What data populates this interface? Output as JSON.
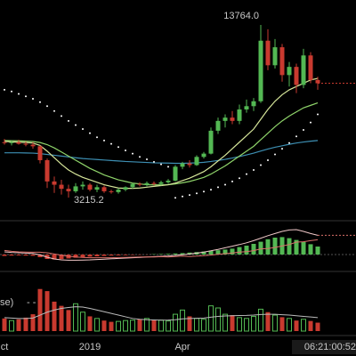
{
  "chart_data": [
    {
      "type": "candlestick",
      "categories": [
        "ct",
        null,
        null,
        null,
        null,
        null,
        null,
        null,
        null,
        null,
        null,
        null,
        "2019",
        null,
        null,
        null,
        null,
        null,
        null,
        null,
        null,
        null,
        null,
        null,
        null,
        "Apr",
        null,
        null,
        null,
        null,
        null,
        null,
        null,
        null,
        null,
        null,
        null,
        null,
        null,
        null,
        null,
        null,
        null,
        null,
        null
      ],
      "open": [
        6600,
        6550,
        6600,
        6500,
        6450,
        6350,
        5500,
        4200,
        4000,
        3750,
        3600,
        3900,
        4000,
        3700,
        3850,
        3600,
        3550,
        3700,
        3850,
        4050,
        4000,
        4100,
        4050,
        4150,
        4250,
        5100,
        5300,
        5200,
        5700,
        5900,
        7300,
        7900,
        8100,
        7900,
        8600,
        8800,
        9100,
        12800,
        11300,
        12400,
        10700,
        11200,
        10100,
        11900,
        10400
      ],
      "high": [
        6800,
        6700,
        6750,
        6650,
        6600,
        6400,
        5600,
        4500,
        4300,
        4000,
        4100,
        4200,
        4100,
        4000,
        3950,
        3700,
        3800,
        3900,
        4100,
        4150,
        4200,
        4200,
        4250,
        4350,
        5200,
        5400,
        5500,
        5800,
        6000,
        7500,
        8100,
        8300,
        8500,
        8900,
        9200,
        9300,
        13764,
        13500,
        12900,
        12600,
        11500,
        11400,
        12300,
        12100,
        10600
      ],
      "low": [
        6450,
        6400,
        6450,
        6350,
        6200,
        5300,
        3800,
        3500,
        3400,
        3215.2,
        3500,
        3700,
        3600,
        3550,
        3500,
        3450,
        3450,
        3600,
        3750,
        3900,
        3900,
        3950,
        3950,
        4050,
        4200,
        4950,
        5050,
        5150,
        5600,
        5850,
        7100,
        7500,
        7700,
        7700,
        8400,
        8500,
        9000,
        11000,
        11100,
        10300,
        10000,
        9600,
        9900,
        10200,
        9800
      ],
      "close": [
        6550,
        6600,
        6500,
        6450,
        6350,
        5500,
        4200,
        4000,
        3750,
        3600,
        3900,
        4000,
        3700,
        3850,
        3600,
        3550,
        3700,
        3850,
        4050,
        4000,
        4100,
        4050,
        4150,
        4250,
        5100,
        5300,
        5200,
        5700,
        5900,
        7300,
        7900,
        8100,
        7900,
        8600,
        8800,
        9100,
        12800,
        11300,
        12400,
        10700,
        11200,
        10100,
        11900,
        10400,
        10200
      ],
      "up_color": "#53b853",
      "down_color": "#c93a2f",
      "lines": [
        {
          "color": "#3d8fb3",
          "values": [
            5950,
            5950,
            5950,
            5940,
            5930,
            5900,
            5850,
            5800,
            5750,
            5700,
            5650,
            5600,
            5570,
            5540,
            5510,
            5480,
            5450,
            5420,
            5400,
            5380,
            5360,
            5340,
            5330,
            5320,
            5310,
            5310,
            5320,
            5340,
            5370,
            5420,
            5480,
            5550,
            5630,
            5720,
            5820,
            5930,
            6060,
            6180,
            6290,
            6380,
            6470,
            6550,
            6610,
            6660,
            6700
          ]
        },
        {
          "color": "#8fd46a",
          "values": [
            6700,
            6690,
            6680,
            6660,
            6640,
            6580,
            6450,
            6250,
            6000,
            5750,
            5500,
            5250,
            5000,
            4800,
            4600,
            4450,
            4300,
            4200,
            4100,
            4050,
            4000,
            3990,
            3990,
            4000,
            4050,
            4120,
            4200,
            4320,
            4450,
            4650,
            4900,
            5150,
            5450,
            5750,
            6050,
            6350,
            6750,
            7150,
            7550,
            7900,
            8200,
            8450,
            8700,
            8850,
            9000
          ]
        },
        {
          "color": "#d6e69a",
          "values": [
            6650,
            6620,
            6600,
            6580,
            6550,
            6400,
            6050,
            5650,
            5250,
            4900,
            4650,
            4450,
            4300,
            4150,
            4000,
            3900,
            3800,
            3780,
            3780,
            3800,
            3850,
            3900,
            3950,
            4000,
            4100,
            4250,
            4400,
            4600,
            4800,
            5100,
            5450,
            5800,
            6200,
            6600,
            7000,
            7400,
            8000,
            8600,
            9100,
            9500,
            9800,
            10000,
            10200,
            10400,
            10500
          ]
        }
      ],
      "sar": {
        "color": "#ffffff",
        "values": [
          9800,
          9700,
          9550,
          9400,
          9250,
          9050,
          8800,
          8500,
          8200,
          7900,
          7650,
          7400,
          7150,
          6900,
          6700,
          6500,
          6300,
          6100,
          5900,
          5700,
          5550,
          5400,
          5250,
          5100,
          3200,
          3280,
          3370,
          3470,
          3580,
          3700,
          3850,
          4000,
          4200,
          4400,
          4650,
          4900,
          5200,
          5500,
          5850,
          6200,
          6550,
          6950,
          7350,
          7800,
          8300
        ]
      },
      "annotations": [
        {
          "value": 13764,
          "label": "13764.0"
        },
        {
          "value": 3215.2,
          "label": "3215.2"
        }
      ],
      "countdown": "06:21:00:52",
      "ylim": [
        1964,
        15287
      ]
    },
    {
      "type": "macd",
      "histogram": [
        -80,
        -60,
        -50,
        -60,
        -70,
        -150,
        -250,
        -280,
        -260,
        -220,
        -180,
        -150,
        -120,
        -100,
        -80,
        -60,
        -50,
        -40,
        -30,
        -20,
        -10,
        20,
        30,
        40,
        60,
        80,
        110,
        140,
        170,
        200,
        240,
        280,
        330,
        420,
        500,
        600,
        720,
        860,
        950,
        980,
        920,
        820,
        700,
        580,
        450
      ],
      "pos_color": "#53b853",
      "neg_color": "#c93a2f",
      "lines": [
        {
          "color": "#f0c8c8",
          "values": [
            150,
            120,
            100,
            80,
            60,
            -20,
            -150,
            -250,
            -300,
            -320,
            -320,
            -310,
            -300,
            -280,
            -260,
            -240,
            -220,
            -200,
            -180,
            -160,
            -140,
            -120,
            -100,
            -80,
            -50,
            -10,
            30,
            80,
            140,
            210,
            290,
            380,
            470,
            560,
            660,
            780,
            920,
            1060,
            1180,
            1300,
            1380,
            1400,
            1300,
            1180,
            1080
          ]
        },
        {
          "color": "#d9706a",
          "values": [
            230,
            180,
            150,
            140,
            130,
            130,
            100,
            30,
            -40,
            -100,
            -140,
            -160,
            -180,
            -180,
            -180,
            -180,
            -170,
            -160,
            -150,
            -140,
            -130,
            -140,
            -120,
            -140,
            -110,
            -90,
            -110,
            -90,
            -60,
            -30,
            10,
            50,
            90,
            140,
            160,
            220,
            320,
            340,
            400,
            480,
            560,
            700,
            720,
            780,
            830
          ]
        }
      ],
      "ylim": [
        -700,
        1700
      ]
    },
    {
      "type": "volume",
      "values": [
        300,
        250,
        280,
        320,
        400,
        1000,
        950,
        700,
        600,
        500,
        650,
        450,
        350,
        300,
        250,
        220,
        230,
        250,
        260,
        280,
        300,
        270,
        260,
        240,
        400,
        500,
        350,
        300,
        280,
        600,
        550,
        400,
        380,
        320,
        300,
        350,
        520,
        450,
        380,
        330,
        300,
        250,
        280,
        240,
        200
      ],
      "ma": {
        "color": "#bbbbbb",
        "values": [
          320,
          310,
          300,
          300,
          310,
          380,
          450,
          500,
          540,
          560,
          580,
          570,
          540,
          500,
          460,
          420,
          380,
          340,
          300,
          280,
          270,
          265,
          260,
          262,
          270,
          290,
          300,
          305,
          310,
          330,
          350,
          360,
          365,
          370,
          372,
          380,
          395,
          400,
          398,
          390,
          380,
          365,
          350,
          335,
          320
        ]
      },
      "annotations": [
        "se)",
        "- -"
      ],
      "ylim": [
        0,
        1100
      ]
    }
  ]
}
